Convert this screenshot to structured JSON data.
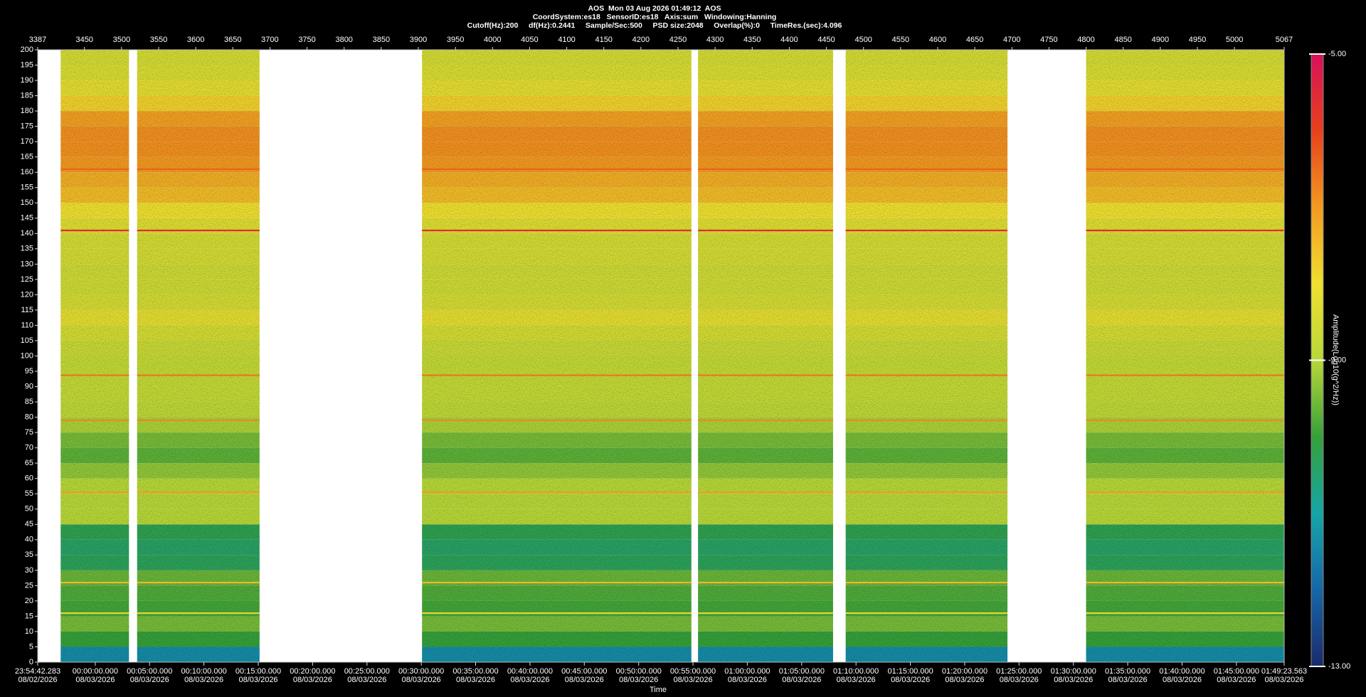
{
  "chart_data": {
    "type": "spectrogram",
    "title": "AOS  Mon 03 Aug 2026 01:49:12  AOS",
    "subtitle": "CoordSystem:es18   SensorID:es18   Axis:sum   Windowing:Hanning",
    "details": "Cutoff(Hz):200     df(Hz):0.2441     Sample/Sec:500     PSD size:2048     Overlap(%):0     TimeRes.(sec):4.096",
    "xlabel": "Time",
    "colorbar_label": "Amplitude(Log10(g^2/Hz))",
    "xlim": [
      3387,
      5067
    ],
    "xticks": [
      3387,
      3450,
      3500,
      3550,
      3600,
      3650,
      3700,
      3750,
      3800,
      3850,
      3900,
      3950,
      4000,
      4050,
      4100,
      4150,
      4200,
      4250,
      4300,
      4350,
      4400,
      4450,
      4500,
      4550,
      4600,
      4650,
      4700,
      4750,
      4800,
      4850,
      4900,
      4950,
      5000,
      5067
    ],
    "ylim": [
      0,
      200
    ],
    "yticks": [
      0,
      5,
      10,
      15,
      20,
      25,
      30,
      35,
      40,
      45,
      50,
      55,
      60,
      65,
      70,
      75,
      80,
      85,
      90,
      95,
      100,
      105,
      110,
      115,
      120,
      125,
      130,
      135,
      140,
      145,
      150,
      155,
      160,
      165,
      170,
      175,
      180,
      185,
      190,
      195,
      200
    ],
    "time_ticks": [
      {
        "value": 3387,
        "label": "23:54:42.283",
        "date": "08/02/2026"
      },
      {
        "value": 3464.6,
        "label": "00:00:00.000",
        "date": "08/03/2026"
      },
      {
        "value": 3537.8,
        "label": "00:05:00.000",
        "date": "08/03/2026"
      },
      {
        "value": 3611.0,
        "label": "00:10:00.000",
        "date": "08/03/2026"
      },
      {
        "value": 3684.3,
        "label": "00:15:00.000",
        "date": "08/03/2026"
      },
      {
        "value": 3757.5,
        "label": "00:20:00.000",
        "date": "08/03/2026"
      },
      {
        "value": 3830.8,
        "label": "00:25:00.000",
        "date": "08/03/2026"
      },
      {
        "value": 3904.0,
        "label": "00:30:00.000",
        "date": "08/03/2026"
      },
      {
        "value": 3977.2,
        "label": "00:35:00.000",
        "date": "08/03/2026"
      },
      {
        "value": 4050.5,
        "label": "00:40:00.000",
        "date": "08/03/2026"
      },
      {
        "value": 4123.7,
        "label": "00:45:00.000",
        "date": "08/03/2026"
      },
      {
        "value": 4197.0,
        "label": "00:50:00.000",
        "date": "08/03/2026"
      },
      {
        "value": 4270.2,
        "label": "00:55:00.000",
        "date": "08/03/2026"
      },
      {
        "value": 4343.4,
        "label": "01:00:00.000",
        "date": "08/03/2026"
      },
      {
        "value": 4416.7,
        "label": "01:05:00.000",
        "date": "08/03/2026"
      },
      {
        "value": 4489.9,
        "label": "01:10:00.000",
        "date": "08/03/2026"
      },
      {
        "value": 4563.2,
        "label": "01:15:00.000",
        "date": "08/03/2026"
      },
      {
        "value": 4636.4,
        "label": "01:20:00.000",
        "date": "08/03/2026"
      },
      {
        "value": 4709.6,
        "label": "01:25:00.000",
        "date": "08/03/2026"
      },
      {
        "value": 4782.9,
        "label": "01:30:00.000",
        "date": "08/03/2026"
      },
      {
        "value": 4856.1,
        "label": "01:35:00.000",
        "date": "08/03/2026"
      },
      {
        "value": 4929.4,
        "label": "01:40:00.000",
        "date": "08/03/2026"
      },
      {
        "value": 5002.6,
        "label": "01:45:00.000",
        "date": "08/03/2026"
      },
      {
        "value": 5067,
        "label": "01:49:23.563",
        "date": "08/03/2026"
      }
    ],
    "segments": [
      [
        3418,
        3510
      ],
      [
        3521,
        3686
      ],
      [
        3905,
        4268
      ],
      [
        4277,
        4459
      ],
      [
        4476,
        4694
      ],
      [
        4800,
        5067
      ]
    ],
    "bins": [
      0,
      5,
      10,
      15,
      20,
      25,
      30,
      35,
      40,
      45,
      50,
      55,
      60,
      65,
      70,
      75,
      80,
      85,
      90,
      95,
      100,
      105,
      110,
      115,
      120,
      125,
      130,
      135,
      140,
      145,
      150,
      155,
      160,
      165,
      170,
      175,
      180,
      185,
      190,
      195,
      200
    ],
    "profile": [
      -11.4,
      -10.0,
      -9.5,
      -9.9,
      -9.8,
      -9.6,
      -10.3,
      -10.4,
      -10.2,
      -9.0,
      -9.0,
      -9.0,
      -9.3,
      -9.7,
      -9.5,
      -9.1,
      -8.9,
      -8.8,
      -8.8,
      -8.8,
      -8.7,
      -8.5,
      -8.2,
      -8.5,
      -8.6,
      -8.6,
      -8.5,
      -8.5,
      -8.3,
      -8.0,
      -7.5,
      -7.3,
      -7.0,
      -6.9,
      -6.9,
      -7.1,
      -7.8,
      -8.2,
      -8.4,
      -8.5
    ],
    "lines": [
      {
        "freq": 141,
        "level": -5.6
      },
      {
        "freq": 161,
        "level": -6.4
      },
      {
        "freq": 93.7,
        "level": -6.6
      },
      {
        "freq": 79,
        "level": -6.8
      },
      {
        "freq": 55.5,
        "level": -7.0
      },
      {
        "freq": 26,
        "level": -7.4
      },
      {
        "freq": 16,
        "level": -7.8
      }
    ],
    "clim": [
      -13,
      -5
    ],
    "cticks": [
      {
        "value": -5,
        "label": "-5.00"
      },
      {
        "value": -9,
        "label": "-9.00"
      },
      {
        "value": -13,
        "label": "-13.00"
      }
    ],
    "colormap": [
      "#1b2a6b",
      "#1766a8",
      "#15a6a6",
      "#36a03a",
      "#b8d838",
      "#f0e030",
      "#f39a20",
      "#e8401c",
      "#d8105a"
    ]
  }
}
